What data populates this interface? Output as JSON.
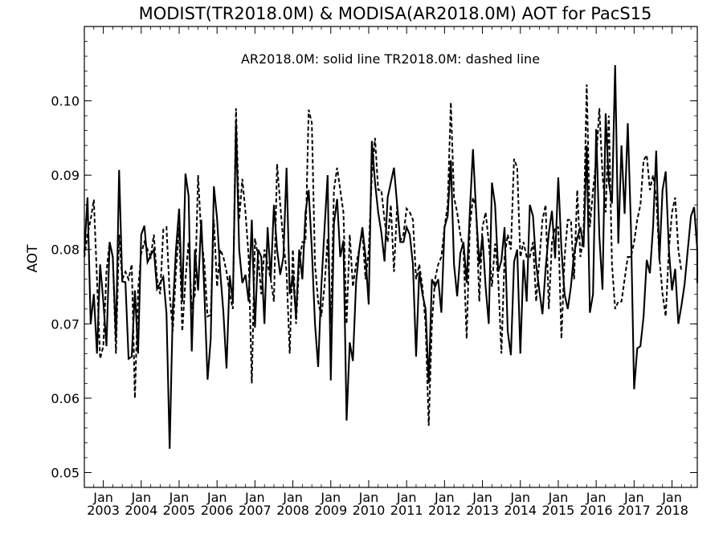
{
  "chart_data": {
    "type": "line",
    "title": "MODIST(TR2018.0M) & MODISA(AR2018.0M)  AOT for PacS15",
    "annotation": "AR2018.0M: solid line   TR2018.0M: dashed line",
    "ylabel": "AOT",
    "xlabel": "",
    "xlim": [
      "2002-07",
      "2018-09"
    ],
    "ylim": [
      0.048,
      0.11
    ],
    "grid": false,
    "legend": "none",
    "y_ticks": [
      "0.05",
      "0.06",
      "0.07",
      "0.08",
      "0.09",
      "0.10"
    ],
    "x_ticks": [
      {
        "month": "Jan",
        "year": "2003"
      },
      {
        "month": "Jan",
        "year": "2004"
      },
      {
        "month": "Jan",
        "year": "2005"
      },
      {
        "month": "Jan",
        "year": "2006"
      },
      {
        "month": "Jan",
        "year": "2007"
      },
      {
        "month": "Jan",
        "year": "2008"
      },
      {
        "month": "Jan",
        "year": "2009"
      },
      {
        "month": "Jan",
        "year": "2010"
      },
      {
        "month": "Jan",
        "year": "2011"
      },
      {
        "month": "Jan",
        "year": "2012"
      },
      {
        "month": "Jan",
        "year": "2013"
      },
      {
        "month": "Jan",
        "year": "2014"
      },
      {
        "month": "Jan",
        "year": "2015"
      },
      {
        "month": "Jan",
        "year": "2016"
      },
      {
        "month": "Jan",
        "year": "2017"
      },
      {
        "month": "Jan",
        "year": "2018"
      }
    ],
    "series": [
      {
        "style": "solid",
        "color": "#000000",
        "start": "2002-07",
        "values": [
          0.0795,
          0.087,
          0.07,
          0.074,
          0.066,
          0.078,
          0.073,
          0.067,
          0.081,
          0.079,
          0.068,
          0.0907,
          0.0757,
          0.0756,
          0.0653,
          0.0656,
          0.0745,
          0.066,
          0.082,
          0.0832,
          0.0783,
          0.0792,
          0.08,
          0.0747,
          0.0755,
          0.0763,
          0.0714,
          0.0532,
          0.072,
          0.08,
          0.0855,
          0.073,
          0.0902,
          0.0872,
          0.0663,
          0.08,
          0.0745,
          0.084,
          0.074,
          0.0625,
          0.068,
          0.0885,
          0.0842,
          0.077,
          0.0716,
          0.064,
          0.0765,
          0.073,
          0.097,
          0.08,
          0.0755,
          0.0766,
          0.073,
          0.084,
          0.0695,
          0.08,
          0.079,
          0.07,
          0.083,
          0.076,
          0.086,
          0.08,
          0.0766,
          0.079,
          0.091,
          0.074,
          0.0766,
          0.071,
          0.08,
          0.076,
          0.085,
          0.088,
          0.08,
          0.07,
          0.0642,
          0.075,
          0.0827,
          0.09,
          0.0624,
          0.0835,
          0.0868,
          0.079,
          0.0812,
          0.057,
          0.0675,
          0.065,
          0.0755,
          0.08,
          0.083,
          0.079,
          0.0726,
          0.0946,
          0.089,
          0.085,
          0.0823,
          0.0784,
          0.087,
          0.089,
          0.091,
          0.086,
          0.081,
          0.081,
          0.083,
          0.082,
          0.078,
          0.0656,
          0.077,
          0.074,
          0.072,
          0.062,
          0.076,
          0.075,
          0.076,
          0.0715,
          0.083,
          0.0845,
          0.092,
          0.078,
          0.0737,
          0.0795,
          0.081,
          0.0755,
          0.085,
          0.0935,
          0.085,
          0.078,
          0.0818,
          0.075,
          0.07,
          0.089,
          0.086,
          0.077,
          0.0785,
          0.083,
          0.069,
          0.0658,
          0.0783,
          0.08,
          0.066,
          0.0786,
          0.073,
          0.086,
          0.0845,
          0.078,
          0.0745,
          0.0713,
          0.0775,
          0.0822,
          0.0852,
          0.0788,
          0.0897,
          0.08,
          0.074,
          0.072,
          0.075,
          0.0795,
          0.0815,
          0.083,
          0.0803,
          0.094,
          0.0715,
          0.074,
          0.0962,
          0.0818,
          0.0746,
          0.0983,
          0.089,
          0.0862,
          0.1048,
          0.0808,
          0.094,
          0.0848,
          0.097,
          0.083,
          0.0612,
          0.0667,
          0.067,
          0.071,
          0.0786,
          0.0768,
          0.083,
          0.0933,
          0.0785,
          0.088,
          0.0905,
          0.08,
          0.0745,
          0.0774,
          0.07,
          0.0725,
          0.0754,
          0.08,
          0.0845,
          0.0857,
          0.08,
          0.0755
        ]
      },
      {
        "style": "dashed",
        "color": "#000000",
        "start": "2002-07",
        "values": [
          0.079,
          0.082,
          0.084,
          0.0867,
          0.076,
          0.0653,
          0.067,
          0.077,
          0.081,
          0.079,
          0.066,
          0.082,
          0.076,
          0.077,
          0.076,
          0.078,
          0.06,
          0.0745,
          0.0795,
          0.081,
          0.08,
          0.079,
          0.082,
          0.076,
          0.074,
          0.0827,
          0.083,
          0.074,
          0.069,
          0.0772,
          0.083,
          0.069,
          0.076,
          0.081,
          0.072,
          0.074,
          0.09,
          0.0818,
          0.078,
          0.071,
          0.0712,
          0.084,
          0.075,
          0.08,
          0.079,
          0.077,
          0.074,
          0.072,
          0.099,
          0.084,
          0.0895,
          0.085,
          0.079,
          0.062,
          0.0815,
          0.079,
          0.074,
          0.08,
          0.078,
          0.076,
          0.073,
          0.0915,
          0.086,
          0.081,
          0.077,
          0.066,
          0.08,
          0.07,
          0.078,
          0.081,
          0.081,
          0.0988,
          0.097,
          0.078,
          0.073,
          0.071,
          0.075,
          0.0815,
          0.07,
          0.088,
          0.091,
          0.088,
          0.085,
          0.07,
          0.082,
          0.075,
          0.078,
          0.08,
          0.0825,
          0.076,
          0.0797,
          0.09,
          0.095,
          0.088,
          0.088,
          0.084,
          0.081,
          0.086,
          0.077,
          0.086,
          0.0812,
          0.082,
          0.0855,
          0.085,
          0.084,
          0.076,
          0.078,
          0.075,
          0.07,
          0.0563,
          0.07,
          0.076,
          0.078,
          0.079,
          0.083,
          0.086,
          0.0998,
          0.087,
          0.085,
          0.082,
          0.08,
          0.068,
          0.083,
          0.087,
          0.0855,
          0.073,
          0.083,
          0.085,
          0.081,
          0.075,
          0.0808,
          0.076,
          0.066,
          0.079,
          0.082,
          0.08,
          0.0922,
          0.091,
          0.079,
          0.081,
          0.079,
          0.079,
          0.081,
          0.073,
          0.0785,
          0.084,
          0.086,
          0.072,
          0.081,
          0.083,
          0.083,
          0.068,
          0.079,
          0.084,
          0.084,
          0.076,
          0.088,
          0.079,
          0.082,
          0.1022,
          0.083,
          0.088,
          0.092,
          0.099,
          0.09,
          0.085,
          0.098,
          0.078,
          0.072,
          0.073,
          0.073,
          0.076,
          0.079,
          0.079,
          0.081,
          0.084,
          0.086,
          0.092,
          0.0927,
          0.088,
          0.09,
          0.087,
          0.079,
          0.074,
          0.071,
          0.08,
          0.085,
          0.087,
          0.08,
          0.077
        ]
      }
    ]
  }
}
